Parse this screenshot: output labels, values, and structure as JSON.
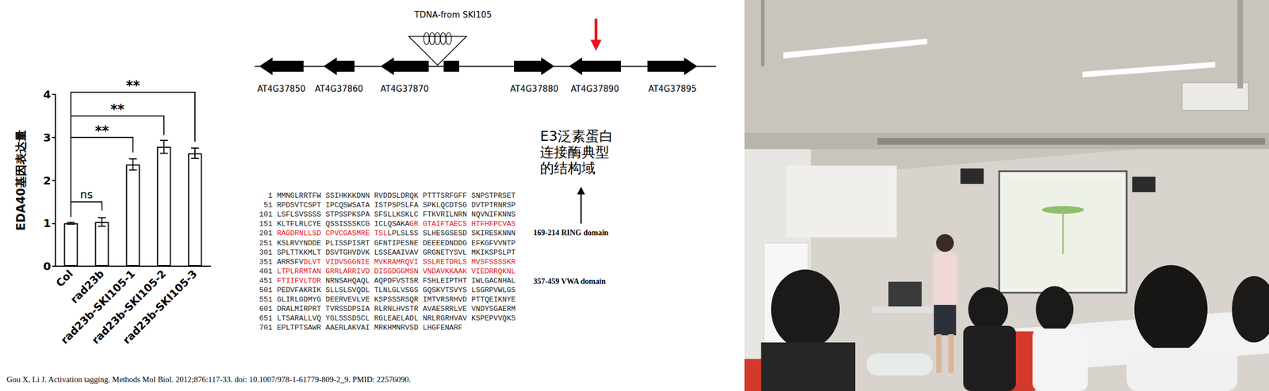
{
  "chart_data": {
    "type": "bar",
    "y_label": "EDA40基因表达量",
    "categories": [
      "Col",
      "rad23b",
      "rad23b-SKI105-1",
      "rad23b-SKI105-2",
      "rad23b-SKI105-3"
    ],
    "values": [
      1.0,
      1.03,
      2.37,
      2.78,
      2.63
    ],
    "errors": [
      0.02,
      0.1,
      0.13,
      0.15,
      0.12
    ],
    "color": "#ffffff",
    "ylim": [
      0,
      4
    ],
    "yticks": [
      0,
      1,
      2,
      3,
      4
    ],
    "grid": false,
    "significance": [
      {
        "from": "Col",
        "to": "rad23b",
        "y": 1.5,
        "y_from": 1.15,
        "y_to": 1.3,
        "label": "ns"
      },
      {
        "from": "Col",
        "to": "rad23b-SKI105-1",
        "y": 3.0,
        "y_from": 1.15,
        "y_to": 2.65,
        "label": "**"
      },
      {
        "from": "Col",
        "to": "rad23b-SKI105-2",
        "y": 3.5,
        "y_from": 3.0,
        "y_to": 3.05,
        "label": "**"
      },
      {
        "from": "Col",
        "to": "rad23b-SKI105-3",
        "y": 4.05,
        "y_from": 3.5,
        "y_to": 2.9,
        "label": "**"
      }
    ]
  },
  "gene_diagram": {
    "insertion_label": "TDNA-from SKI105",
    "genes": [
      {
        "label": "AT4G37850",
        "direction": "left"
      },
      {
        "label": "AT4G37860",
        "direction": "left"
      },
      {
        "label": "AT4G37870",
        "direction": "left"
      },
      {
        "label": "AT4G37880",
        "direction": "right"
      },
      {
        "label": "AT4G37890",
        "direction": "left",
        "marked": true,
        "color": "#e8141b"
      },
      {
        "label": "AT4G37895",
        "direction": "right"
      }
    ]
  },
  "annotation": {
    "lines": [
      "E3泛素蛋白",
      "连接酶典型",
      "的结构域"
    ]
  },
  "domains": [
    "169-214 RING domain",
    "357-459 VWA domain"
  ],
  "protein_sequence": {
    "highlight_color": "#e8141b",
    "lines": [
      [
        {
          "text": "  1 MMNGLRRTFW SSIHKKKDNN RVDDSLDRQK PTTTSRFGFF SNPSTPRSET"
        }
      ],
      [
        {
          "text": " 51 RPDSVTCSPT IPCQSWSATA ISTPSPSLFA SPKLQCDTSG DVTPTRNRSP"
        }
      ],
      [
        {
          "text": "101 LSFLSVSSSS STPSSPKSPA SFSLLKSKLC FTKVRILNRN NQVNIFKNNS"
        }
      ],
      [
        {
          "text": "151 KLTFLRLCYE QSSISSSKCG ICLQSAKA"
        },
        {
          "text": "GR GTAIFTAECS HTFHFPCVAS",
          "red": true
        }
      ],
      [
        {
          "text": "201 ",
          "red": false
        },
        {
          "text": "RAGDRNLLSD CPVCGASMRE TSL",
          "red": true
        },
        {
          "text": "LPLSLSS SLHESGSESD SKIRESKNNN"
        }
      ],
      [
        {
          "text": "251 KSLRVYNDDE PLISSPISRT GFNTIPESNE DEEEEDNDDG EFKGFVVNTP"
        }
      ],
      [
        {
          "text": "301 SPLTTKKMLT DSVTGHVDVK LSSEAAIVAV GRGNETYSVL MKIKSPSLPT"
        }
      ],
      [
        {
          "text": "351 ARRSFV"
        },
        {
          "text": "DLVT VIDVSGGNIE MVKRAMRQVI SSLRETDRLS MVSFSSSSKR",
          "red": true
        }
      ],
      [
        {
          "text": "401 "
        },
        {
          "text": "LTPLRRMTAN GRRLARRIVD DISGDGGMSN VNDAVKKAAK VIEDRRQKNL",
          "red": true
        }
      ],
      [
        {
          "text": "451 "
        },
        {
          "text": "FTIIFVLTDR",
          "red": true
        },
        {
          "text": " NRNSAHQAQL AQPDFVSTSR FSHLEIPTHT IWLGACNHAL"
        }
      ],
      [
        {
          "text": "501 PEDVFAKRIK SLLSLSVQDL TLNLGLVSGS GQSKVTSVYS LSGRPVWLGS"
        }
      ],
      [
        {
          "text": "551 GLIRLGDMYG DEERVEVLVE KSPSSSRSQR IMTVRSRHVD PTTQEIKNYE"
        }
      ],
      [
        {
          "text": "601 DRALMIRPRT TVRSSDPSIA RLRNLHVSTR AVAESRRLVE VNDYSGAERM"
        }
      ],
      [
        {
          "text": "651 LTSARALLVQ YGLSSSDSCL RGLEAELADL NRLRGRHVAV KSPEPVVQKS"
        }
      ],
      [
        {
          "text": "701 EPLTPTSAWR AAERLAKVAI MRKHMNRVSD LHGFENARF"
        }
      ]
    ]
  },
  "citation": "Gou X, Li J. Activation tagging. Methods Mol Biol. 2012;876:117-33. doi: 10.1007/978-1-61779-809-2_9. PMID: 22576090."
}
